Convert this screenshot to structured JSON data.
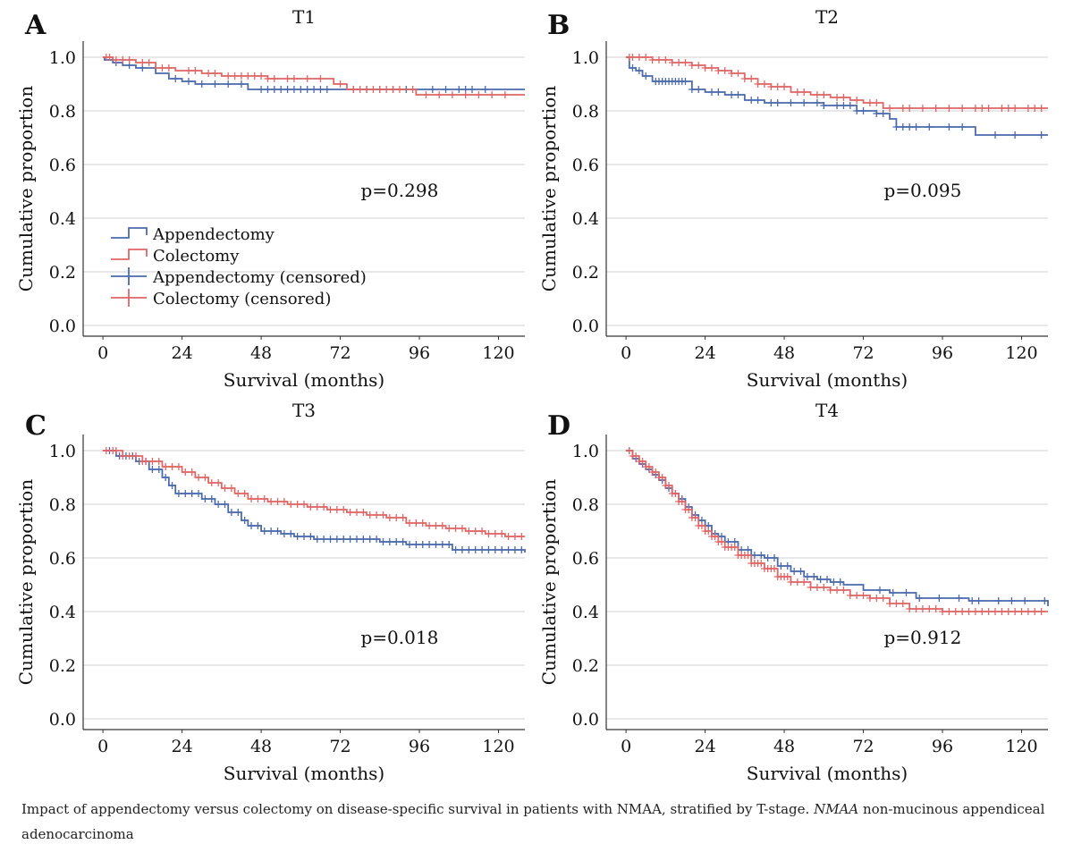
{
  "colors": {
    "appendectomy": "#4a6aad",
    "colectomy": "#e06666",
    "grid": "#d9d9d9",
    "axis": "#333333"
  },
  "legend_labels": [
    "Appendectomy",
    "Colectomy",
    "Appendectomy (censored)",
    "Colectomy (censored)"
  ],
  "caption": {
    "main": "Impact of appendectomy versus colectomy on disease-specific survival in patients with NMAA, stratified by T-stage.",
    "abbr": "NMAA",
    "abbr_def": "non-mucinous appendiceal adenocarcinoma"
  },
  "chart_data": [
    {
      "panel": "A",
      "title": "T1",
      "type": "line",
      "step": true,
      "xlabel": "Survival (months)",
      "ylabel": "Cumulative proportion",
      "xticks": [
        0,
        24,
        48,
        72,
        96,
        120
      ],
      "yticks": [
        0.0,
        0.2,
        0.4,
        0.6,
        0.8,
        1.0
      ],
      "xlim": [
        -6,
        128
      ],
      "ylim": [
        -0.04,
        1.06
      ],
      "annotation": "p=0.298",
      "legend": true,
      "series": [
        {
          "name": "Appendectomy",
          "x": [
            0,
            0.5,
            3,
            6,
            10,
            16,
            20,
            24,
            28,
            32,
            44,
            128
          ],
          "y": [
            1.0,
            0.99,
            0.98,
            0.97,
            0.96,
            0.94,
            0.92,
            0.91,
            0.9,
            0.9,
            0.88,
            0.88
          ],
          "censored": [
            4,
            8,
            12,
            22,
            26,
            30,
            34,
            38,
            42,
            48,
            50,
            52,
            54,
            56,
            58,
            60,
            62,
            64,
            66,
            68,
            76,
            80,
            84,
            88,
            92,
            100,
            104,
            108,
            110,
            112,
            116
          ]
        },
        {
          "name": "Colectomy",
          "x": [
            0,
            3,
            10,
            16,
            22,
            30,
            36,
            50,
            60,
            70,
            74,
            92,
            95,
            128
          ],
          "y": [
            1.0,
            0.99,
            0.98,
            0.96,
            0.95,
            0.94,
            0.93,
            0.92,
            0.92,
            0.9,
            0.88,
            0.88,
            0.86,
            0.86
          ],
          "censored": [
            1,
            2,
            4,
            6,
            8,
            12,
            14,
            18,
            20,
            26,
            28,
            32,
            34,
            38,
            40,
            42,
            44,
            46,
            48,
            50,
            52,
            56,
            58,
            62,
            66,
            72,
            76,
            78,
            80,
            82,
            84,
            86,
            88,
            90,
            94,
            98,
            102,
            106,
            110,
            114,
            118,
            122
          ]
        }
      ]
    },
    {
      "panel": "B",
      "title": "T2",
      "type": "line",
      "step": true,
      "xlabel": "Survival (months)",
      "ylabel": "Cumulative proportion",
      "xticks": [
        0,
        24,
        48,
        72,
        96,
        120
      ],
      "yticks": [
        0.0,
        0.2,
        0.4,
        0.6,
        0.8,
        1.0
      ],
      "xlim": [
        -6,
        128
      ],
      "ylim": [
        -0.04,
        1.06
      ],
      "annotation": "p=0.095",
      "legend": false,
      "series": [
        {
          "name": "Appendectomy",
          "x": [
            0,
            1,
            3,
            5,
            8,
            20,
            24,
            30,
            36,
            42,
            60,
            70,
            76,
            80,
            82,
            106,
            128
          ],
          "y": [
            1.0,
            0.96,
            0.95,
            0.93,
            0.91,
            0.88,
            0.87,
            0.86,
            0.84,
            0.83,
            0.82,
            0.8,
            0.79,
            0.77,
            0.74,
            0.71,
            0.71
          ],
          "censored": [
            2,
            4,
            6,
            9,
            10,
            11,
            12,
            13,
            14,
            15,
            16,
            17,
            18,
            20,
            22,
            26,
            28,
            32,
            34,
            38,
            40,
            44,
            46,
            50,
            54,
            58,
            60,
            64,
            66,
            68,
            70,
            72,
            76,
            78,
            82,
            84,
            86,
            88,
            92,
            98,
            102,
            112,
            118,
            126
          ]
        },
        {
          "name": "Colectomy",
          "x": [
            0,
            8,
            14,
            20,
            24,
            28,
            32,
            36,
            40,
            44,
            50,
            56,
            62,
            68,
            72,
            78,
            128
          ],
          "y": [
            1.0,
            0.99,
            0.98,
            0.97,
            0.96,
            0.95,
            0.94,
            0.92,
            0.9,
            0.89,
            0.87,
            0.86,
            0.85,
            0.84,
            0.83,
            0.81,
            0.81
          ],
          "censored": [
            1,
            2,
            4,
            6,
            8,
            10,
            12,
            14,
            16,
            18,
            20,
            22,
            24,
            26,
            28,
            30,
            32,
            34,
            36,
            38,
            40,
            42,
            44,
            46,
            48,
            52,
            54,
            58,
            60,
            64,
            66,
            70,
            74,
            76,
            80,
            84,
            86,
            90,
            94,
            98,
            102,
            106,
            108,
            110,
            114,
            116,
            118,
            122,
            124,
            126
          ]
        }
      ]
    },
    {
      "panel": "C",
      "title": "T3",
      "type": "line",
      "step": true,
      "xlabel": "Survival (months)",
      "ylabel": "Cumulative proportion",
      "xticks": [
        0,
        24,
        48,
        72,
        96,
        120
      ],
      "yticks": [
        0.0,
        0.2,
        0.4,
        0.6,
        0.8,
        1.0
      ],
      "xlim": [
        -6,
        128
      ],
      "ylim": [
        -0.04,
        1.06
      ],
      "annotation": "p=0.018",
      "legend": false,
      "series": [
        {
          "name": "Appendectomy",
          "x": [
            0,
            4,
            10,
            14,
            18,
            20,
            22,
            30,
            34,
            38,
            42,
            44,
            48,
            54,
            58,
            64,
            84,
            92,
            106,
            128
          ],
          "y": [
            1.0,
            0.98,
            0.96,
            0.93,
            0.9,
            0.87,
            0.84,
            0.82,
            0.8,
            0.77,
            0.74,
            0.72,
            0.7,
            0.69,
            0.68,
            0.67,
            0.66,
            0.65,
            0.63,
            0.62
          ],
          "censored": [
            2,
            5,
            7,
            9,
            11,
            13,
            15,
            17,
            19,
            21,
            23,
            25,
            27,
            29,
            31,
            33,
            35,
            37,
            39,
            41,
            43,
            45,
            47,
            49,
            51,
            53,
            55,
            57,
            59,
            61,
            63,
            65,
            67,
            69,
            71,
            73,
            75,
            77,
            79,
            81,
            83,
            85,
            87,
            89,
            91,
            93,
            95,
            97,
            99,
            101,
            103,
            105,
            107,
            109,
            111,
            113,
            115,
            117,
            119,
            121,
            123,
            125,
            127
          ]
        },
        {
          "name": "Colectomy",
          "x": [
            0,
            6,
            12,
            18,
            24,
            28,
            32,
            36,
            40,
            44,
            50,
            56,
            62,
            68,
            74,
            80,
            86,
            92,
            98,
            104,
            110,
            116,
            122,
            128
          ],
          "y": [
            1.0,
            0.98,
            0.96,
            0.94,
            0.92,
            0.9,
            0.88,
            0.86,
            0.84,
            0.82,
            0.81,
            0.8,
            0.79,
            0.78,
            0.77,
            0.76,
            0.75,
            0.73,
            0.72,
            0.71,
            0.7,
            0.69,
            0.68,
            0.68
          ],
          "censored": [
            1,
            3,
            4,
            6,
            8,
            10,
            12,
            13,
            15,
            17,
            19,
            21,
            23,
            25,
            27,
            29,
            31,
            33,
            35,
            37,
            39,
            41,
            43,
            45,
            47,
            49,
            51,
            53,
            55,
            57,
            59,
            61,
            63,
            65,
            67,
            69,
            71,
            73,
            75,
            77,
            79,
            81,
            83,
            85,
            87,
            89,
            91,
            93,
            95,
            97,
            99,
            101,
            103,
            105,
            107,
            109,
            111,
            113,
            115,
            117,
            119,
            121,
            123,
            125,
            127
          ]
        }
      ]
    },
    {
      "panel": "D",
      "title": "T4",
      "type": "line",
      "step": true,
      "xlabel": "Survival (months)",
      "ylabel": "Cumulative proportion",
      "xticks": [
        0,
        24,
        48,
        72,
        96,
        120
      ],
      "yticks": [
        0.0,
        0.2,
        0.4,
        0.6,
        0.8,
        1.0
      ],
      "xlim": [
        -6,
        128
      ],
      "ylim": [
        -0.04,
        1.06
      ],
      "annotation": "p=0.912",
      "legend": false,
      "series": [
        {
          "name": "Appendectomy",
          "x": [
            0,
            2,
            4,
            6,
            8,
            10,
            12,
            14,
            16,
            18,
            20,
            22,
            24,
            26,
            28,
            30,
            34,
            38,
            42,
            46,
            50,
            54,
            58,
            62,
            66,
            72,
            80,
            88,
            104,
            128
          ],
          "y": [
            1.0,
            0.97,
            0.95,
            0.93,
            0.91,
            0.89,
            0.86,
            0.84,
            0.82,
            0.79,
            0.76,
            0.74,
            0.72,
            0.69,
            0.68,
            0.66,
            0.63,
            0.61,
            0.6,
            0.57,
            0.55,
            0.53,
            0.52,
            0.51,
            0.5,
            0.48,
            0.47,
            0.45,
            0.44,
            0.42
          ],
          "censored": [
            1,
            3,
            5,
            7,
            9,
            11,
            13,
            15,
            17,
            19,
            21,
            23,
            25,
            27,
            29,
            31,
            33,
            35,
            37,
            39,
            41,
            43,
            45,
            47,
            49,
            51,
            53,
            55,
            57,
            59,
            61,
            63,
            65,
            77,
            81,
            85,
            89,
            95,
            101,
            105,
            107,
            113,
            117,
            121,
            127
          ]
        },
        {
          "name": "Colectomy",
          "x": [
            0,
            2,
            4,
            6,
            8,
            10,
            12,
            14,
            16,
            18,
            20,
            22,
            24,
            26,
            28,
            30,
            34,
            38,
            42,
            46,
            50,
            56,
            62,
            68,
            74,
            80,
            86,
            96,
            128
          ],
          "y": [
            1.0,
            0.98,
            0.96,
            0.94,
            0.92,
            0.9,
            0.87,
            0.84,
            0.81,
            0.78,
            0.75,
            0.72,
            0.7,
            0.68,
            0.66,
            0.64,
            0.61,
            0.58,
            0.56,
            0.53,
            0.51,
            0.49,
            0.48,
            0.46,
            0.45,
            0.43,
            0.41,
            0.4,
            0.4
          ],
          "censored": [
            1,
            2,
            3,
            4,
            5,
            6,
            7,
            8,
            9,
            10,
            11,
            12,
            13,
            14,
            15,
            16,
            17,
            18,
            19,
            20,
            21,
            22,
            23,
            24,
            25,
            26,
            27,
            28,
            29,
            30,
            31,
            32,
            33,
            34,
            35,
            36,
            37,
            38,
            39,
            40,
            41,
            42,
            43,
            44,
            45,
            46,
            47,
            48,
            49,
            50,
            52,
            54,
            56,
            58,
            60,
            62,
            64,
            66,
            68,
            70,
            72,
            74,
            76,
            78,
            80,
            82,
            84,
            86,
            88,
            90,
            92,
            94,
            96,
            98,
            100,
            102,
            104,
            106,
            108,
            110,
            112,
            114,
            116,
            118,
            120,
            122,
            124,
            126
          ]
        }
      ]
    }
  ]
}
